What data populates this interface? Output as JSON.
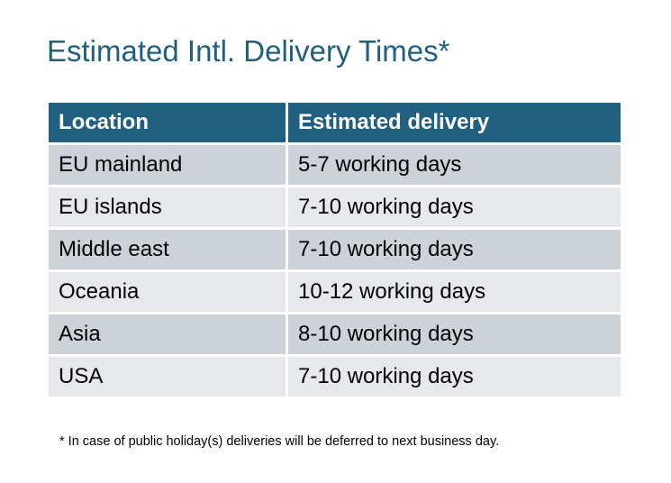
{
  "title": "Estimated Intl. Delivery Times*",
  "table": {
    "headers": [
      "Location",
      "Estimated delivery"
    ],
    "rows": [
      [
        "EU mainland",
        "5-7 working days"
      ],
      [
        "EU islands",
        "7-10 working days"
      ],
      [
        "Middle east",
        "7-10 working days"
      ],
      [
        "Oceania",
        "10-12 working days"
      ],
      [
        "Asia",
        "8-10 working days"
      ],
      [
        "USA",
        "7-10 working days"
      ]
    ]
  },
  "footnote": "* In case of public holiday(s) deliveries will be deferred to next business day.",
  "colors": {
    "header": "#215f80",
    "row_dark": "#cdd1d8",
    "row_light": "#e6e8eb",
    "title": "#215f80"
  }
}
